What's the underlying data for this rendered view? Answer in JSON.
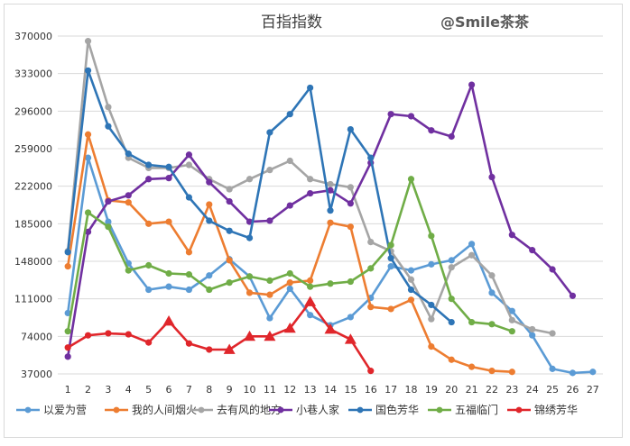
{
  "watermark": "@Smile茶茶",
  "chart_data": {
    "type": "line",
    "title": "百指指数",
    "x": [
      1,
      2,
      3,
      4,
      5,
      6,
      7,
      8,
      9,
      10,
      11,
      12,
      13,
      14,
      15,
      16,
      17,
      18,
      19,
      20,
      21,
      22,
      23,
      24,
      25,
      26,
      27
    ],
    "ylim": [
      37000,
      370000
    ],
    "yticks": [
      37000,
      74000,
      111000,
      148000,
      185000,
      222000,
      259000,
      296000,
      333000,
      370000
    ],
    "ytick_labels": [
      "37000",
      "74000",
      "111000",
      "148000",
      "185000",
      "222000",
      "259000",
      "296000",
      "333000",
      "370000"
    ],
    "grid": true,
    "legend": "bottom",
    "series": [
      {
        "name": "以爱为营",
        "color": "#5b9bd5",
        "marker": "circle",
        "values": [
          97000,
          250000,
          187000,
          146000,
          120000,
          123000,
          120000,
          134000,
          150000,
          133000,
          92000,
          121000,
          95000,
          85000,
          93000,
          112000,
          143000,
          139000,
          145000,
          149000,
          165000,
          117000,
          99000,
          75000,
          42000,
          38000,
          39000
        ]
      },
      {
        "name": "我的人间烟火",
        "color": "#ed7d31",
        "marker": "circle",
        "values": [
          143000,
          273000,
          208000,
          206000,
          185000,
          187000,
          157000,
          204000,
          149000,
          117000,
          115000,
          127000,
          129000,
          186000,
          182000,
          103000,
          101000,
          110000,
          64000,
          51000,
          44000,
          40000,
          39000,
          null,
          null,
          null,
          null
        ]
      },
      {
        "name": "去有风的地方",
        "color": "#a5a5a5",
        "marker": "circle",
        "values": [
          158000,
          365000,
          300000,
          250000,
          240000,
          240000,
          243000,
          229000,
          219000,
          229000,
          238000,
          247000,
          229000,
          224000,
          221000,
          167000,
          158000,
          130000,
          91000,
          142000,
          154000,
          134000,
          90000,
          81000,
          77000,
          null,
          null
        ]
      },
      {
        "name": "小巷人家",
        "color": "#7030a0",
        "marker": "circle",
        "values": [
          54000,
          177000,
          207000,
          213000,
          229000,
          230000,
          253000,
          226000,
          207000,
          187000,
          188000,
          203000,
          215000,
          218000,
          205000,
          245000,
          293000,
          291000,
          277000,
          271000,
          322000,
          231000,
          174000,
          159000,
          140000,
          114000,
          null
        ]
      },
      {
        "name": "国色芳华",
        "color": "#2e75b6",
        "marker": "circle",
        "values": [
          157000,
          336000,
          281000,
          254000,
          243000,
          241000,
          211000,
          188000,
          178000,
          171000,
          275000,
          293000,
          319000,
          198000,
          278000,
          250000,
          151000,
          120000,
          105000,
          88000,
          null,
          null,
          null,
          null,
          null,
          null,
          null
        ]
      },
      {
        "name": "五福临门",
        "color": "#70ad47",
        "marker": "circle",
        "values": [
          79000,
          196000,
          182000,
          139000,
          144000,
          136000,
          135000,
          120000,
          127000,
          133000,
          129000,
          136000,
          123000,
          126000,
          128000,
          141000,
          164000,
          229000,
          173000,
          111000,
          88000,
          86000,
          79000,
          null,
          null,
          null,
          null
        ]
      },
      {
        "name": "锦绣芳华",
        "color": "#e0262b",
        "marker": "mixed",
        "markers": [
          "circle",
          "circle",
          "circle",
          "circle",
          "circle",
          "triangle",
          "circle",
          "circle",
          "triangle",
          "triangle",
          "triangle",
          "triangle",
          "triangle",
          "triangle",
          "triangle",
          "circle",
          null,
          null,
          null,
          null,
          null,
          null,
          null,
          null,
          null,
          null,
          null
        ],
        "values": [
          63000,
          75000,
          77000,
          76000,
          68000,
          89000,
          67000,
          61000,
          61000,
          74000,
          74000,
          82000,
          108000,
          81000,
          71000,
          40000,
          null,
          null,
          null,
          null,
          null,
          null,
          null,
          null,
          null,
          null,
          null
        ]
      }
    ]
  }
}
